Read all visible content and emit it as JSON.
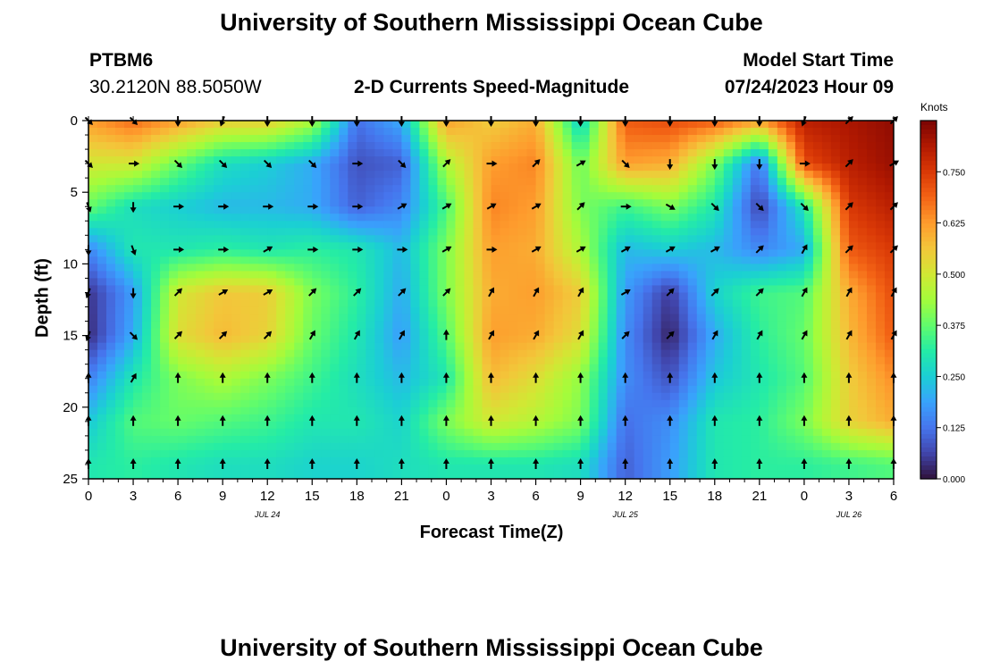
{
  "header": {
    "title": "University of Southern Mississippi Ocean Cube",
    "station": "PTBM6",
    "location": "30.2120N  88.5050W",
    "subtitle": "2-D Currents Speed-Magnitude",
    "model_start_label": "Model Start Time",
    "model_start_value": "07/24/2023 Hour 09"
  },
  "footer": {
    "title": "University of Southern Mississippi Ocean Cube"
  },
  "colorbar": {
    "unit": "Knots",
    "ticks": [
      "0.750",
      "0.625",
      "0.500",
      "0.375",
      "0.250",
      "0.125",
      "0.000"
    ],
    "colors": [
      "#30123b",
      "#4145ab",
      "#4675ed",
      "#39a2fc",
      "#1bcfd4",
      "#24eca6",
      "#61fc6c",
      "#a4fc3b",
      "#d1e834",
      "#f3c63a",
      "#fe9b2d",
      "#f36315",
      "#d93806",
      "#b11901",
      "#7a0403"
    ],
    "range": [
      0,
      0.875
    ]
  },
  "chart_data": {
    "type": "heatmap",
    "title": "2-D Currents Speed-Magnitude",
    "xlabel": "Forecast Time(Z)",
    "ylabel": "Depth (ft)",
    "x_ticks": [
      "0",
      "3",
      "6",
      "9",
      "12",
      "15",
      "18",
      "21",
      "0",
      "3",
      "6",
      "9",
      "12",
      "15",
      "18",
      "21",
      "0",
      "3",
      "6"
    ],
    "x_date_labels": [
      {
        "label": "JUL 24",
        "at_hour": 12
      },
      {
        "label": "JUL 25",
        "at_hour": 36
      },
      {
        "label": "JUL 26",
        "at_hour": 51
      }
    ],
    "y_ticks": [
      0,
      5,
      10,
      15,
      20,
      25
    ],
    "xlim": [
      0,
      54
    ],
    "ylim": [
      0,
      25
    ],
    "value_unit": "knots",
    "depths_ft": [
      0,
      3,
      6,
      9,
      12,
      15,
      18,
      21,
      24
    ],
    "hours": [
      0,
      3,
      6,
      9,
      12,
      15,
      18,
      21,
      24,
      27,
      30,
      33,
      36,
      39,
      42,
      45,
      48,
      51,
      54
    ],
    "speed_knots": [
      [
        0.62,
        0.68,
        0.62,
        0.55,
        0.55,
        0.45,
        0.12,
        0.2,
        0.62,
        0.55,
        0.6,
        0.25,
        0.7,
        0.72,
        0.7,
        0.62,
        0.8,
        0.82,
        0.85
      ],
      [
        0.5,
        0.5,
        0.38,
        0.28,
        0.25,
        0.2,
        0.08,
        0.1,
        0.45,
        0.62,
        0.65,
        0.38,
        0.62,
        0.6,
        0.4,
        0.12,
        0.72,
        0.8,
        0.84
      ],
      [
        0.38,
        0.28,
        0.25,
        0.22,
        0.22,
        0.2,
        0.1,
        0.15,
        0.35,
        0.65,
        0.62,
        0.4,
        0.34,
        0.4,
        0.3,
        0.06,
        0.3,
        0.75,
        0.8
      ],
      [
        0.15,
        0.3,
        0.3,
        0.32,
        0.3,
        0.32,
        0.3,
        0.22,
        0.4,
        0.62,
        0.6,
        0.45,
        0.22,
        0.25,
        0.22,
        0.15,
        0.2,
        0.7,
        0.75
      ],
      [
        0.04,
        0.18,
        0.5,
        0.56,
        0.55,
        0.4,
        0.32,
        0.2,
        0.4,
        0.6,
        0.62,
        0.55,
        0.18,
        0.05,
        0.26,
        0.34,
        0.36,
        0.6,
        0.72
      ],
      [
        0.03,
        0.2,
        0.52,
        0.58,
        0.54,
        0.38,
        0.3,
        0.18,
        0.36,
        0.62,
        0.6,
        0.52,
        0.16,
        0.02,
        0.2,
        0.32,
        0.38,
        0.58,
        0.7
      ],
      [
        0.14,
        0.3,
        0.4,
        0.45,
        0.4,
        0.34,
        0.28,
        0.22,
        0.3,
        0.58,
        0.52,
        0.42,
        0.16,
        0.08,
        0.24,
        0.3,
        0.36,
        0.55,
        0.64
      ],
      [
        0.24,
        0.36,
        0.38,
        0.36,
        0.34,
        0.3,
        0.3,
        0.26,
        0.4,
        0.5,
        0.46,
        0.4,
        0.12,
        0.16,
        0.3,
        0.32,
        0.4,
        0.54,
        0.6
      ],
      [
        0.3,
        0.32,
        0.3,
        0.28,
        0.28,
        0.26,
        0.26,
        0.28,
        0.3,
        0.3,
        0.3,
        0.28,
        0.1,
        0.18,
        0.3,
        0.32,
        0.32,
        0.34,
        0.36
      ]
    ],
    "arrow_direction_deg": [
      [
        135,
        135,
        180,
        200,
        180,
        180,
        180,
        180,
        180,
        180,
        180,
        180,
        180,
        180,
        180,
        180,
        200,
        45,
        45
      ],
      [
        135,
        90,
        135,
        135,
        135,
        135,
        90,
        135,
        45,
        90,
        45,
        60,
        135,
        180,
        180,
        180,
        90,
        45,
        60
      ],
      [
        160,
        180,
        90,
        90,
        90,
        90,
        90,
        60,
        60,
        60,
        60,
        45,
        90,
        120,
        135,
        135,
        135,
        45,
        45
      ],
      [
        180,
        160,
        90,
        90,
        60,
        90,
        90,
        90,
        60,
        90,
        60,
        60,
        60,
        60,
        60,
        45,
        30,
        45,
        45
      ],
      [
        200,
        180,
        45,
        60,
        60,
        45,
        45,
        45,
        45,
        30,
        30,
        30,
        60,
        45,
        45,
        45,
        30,
        30,
        30
      ],
      [
        200,
        135,
        45,
        45,
        45,
        30,
        30,
        30,
        0,
        30,
        30,
        30,
        45,
        45,
        30,
        30,
        30,
        30,
        30
      ],
      [
        0,
        30,
        0,
        0,
        0,
        0,
        0,
        0,
        0,
        0,
        0,
        0,
        0,
        0,
        0,
        0,
        0,
        0,
        0
      ],
      [
        0,
        0,
        0,
        0,
        0,
        0,
        0,
        0,
        0,
        0,
        0,
        0,
        0,
        0,
        0,
        0,
        0,
        0,
        0
      ],
      [
        0,
        0,
        0,
        0,
        0,
        0,
        0,
        0,
        0,
        0,
        0,
        0,
        0,
        0,
        0,
        0,
        0,
        0,
        0
      ]
    ]
  }
}
